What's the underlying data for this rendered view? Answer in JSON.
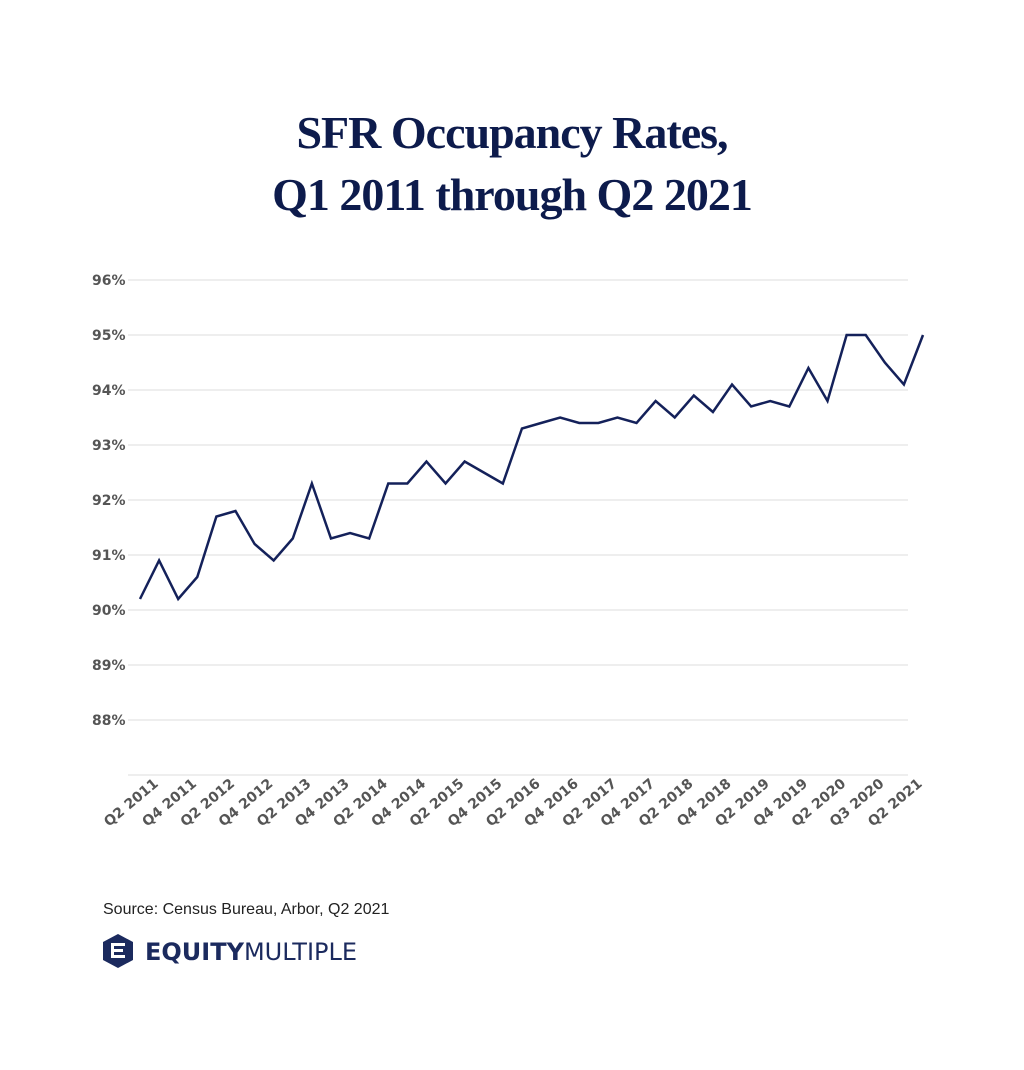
{
  "chart_data": {
    "type": "line",
    "title": [
      "SFR Occupancy Rates,",
      "Q1 2011 through Q2 2021"
    ],
    "categories": [
      null,
      "Q2 2011",
      null,
      "Q4 2011",
      null,
      "Q2 2012",
      null,
      "Q4 2012",
      null,
      "Q2 2013",
      null,
      "Q4 2013",
      null,
      "Q2 2014",
      null,
      "Q4 2014",
      null,
      "Q2 2015",
      null,
      "Q4 2015",
      null,
      "Q2 2016",
      null,
      "Q4 2016",
      null,
      "Q2 2017",
      null,
      "Q4 2017",
      null,
      "Q2 2018",
      null,
      "Q4 2018",
      null,
      "Q2 2019",
      null,
      "Q4 2019",
      null,
      "Q2 2020",
      null,
      "Q3 2020",
      null,
      "Q2 2021"
    ],
    "series": [
      {
        "name": "SFR occupancy rate",
        "color": "#14215a",
        "values": [
          90.2,
          90.9,
          90.2,
          90.6,
          91.7,
          91.8,
          91.2,
          90.9,
          91.3,
          92.3,
          91.3,
          91.4,
          91.3,
          92.3,
          92.3,
          92.7,
          92.3,
          92.7,
          92.5,
          92.3,
          93.3,
          93.4,
          93.5,
          93.4,
          93.4,
          93.5,
          93.4,
          93.8,
          93.5,
          93.9,
          93.6,
          94.1,
          93.7,
          93.8,
          93.7,
          94.4,
          93.8,
          95.0,
          95.0,
          94.5,
          94.1,
          95.0
        ]
      }
    ],
    "ylim": [
      87,
      96
    ],
    "yticks": [
      {
        "value": 88,
        "label": "88%"
      },
      {
        "value": 89,
        "label": "89%"
      },
      {
        "value": 90,
        "label": "90%"
      },
      {
        "value": 91,
        "label": "91%"
      },
      {
        "value": 92,
        "label": "92%"
      },
      {
        "value": 93,
        "label": "93%"
      },
      {
        "value": 94,
        "label": "94%"
      },
      {
        "value": 95,
        "label": "95%"
      },
      {
        "value": 96,
        "label": "96%"
      }
    ],
    "grid": true,
    "source": "Source: Census Bureau, Arbor, Q2 2021",
    "logo": [
      "EQUITY",
      "MULTIPLE"
    ]
  }
}
